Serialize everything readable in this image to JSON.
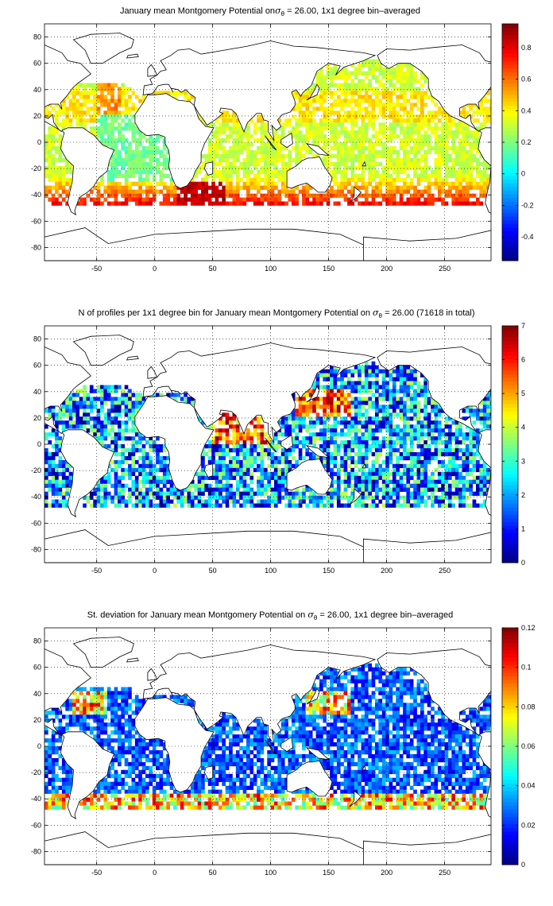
{
  "chart_data": [
    {
      "type": "heatmap",
      "title_prefix": "January mean Montgomery Potential on",
      "title_symbol": "σ",
      "title_sub": "θ",
      "title_suffix": "= 26.00, 1x1 degree bin–averaged",
      "xlim": [
        -95,
        290
      ],
      "ylim": [
        -90,
        90
      ],
      "xticks": [
        -50,
        0,
        50,
        100,
        150,
        200,
        250
      ],
      "yticks": [
        -80,
        -60,
        -40,
        -20,
        0,
        20,
        40,
        60,
        80
      ],
      "grid": true,
      "colorbar": {
        "min": -0.55,
        "max": 0.95,
        "ticks": [
          -0.4,
          -0.2,
          0,
          0.2,
          0.4,
          0.6,
          0.8
        ],
        "labels": [
          "-0.4",
          "-0.2",
          "0",
          "0.2",
          "0.4",
          "0.6",
          "0.8"
        ]
      },
      "field": "mean"
    },
    {
      "type": "heatmap",
      "title_prefix": "N of profiles per 1x1 degree bin for January mean Montgomery Potential on",
      "title_symbol": "σ",
      "title_sub": "θ",
      "title_suffix": "= 26.00 (71618 in total)",
      "xlim": [
        -95,
        290
      ],
      "ylim": [
        -90,
        90
      ],
      "xticks": [
        -50,
        0,
        50,
        100,
        150,
        200,
        250
      ],
      "yticks": [
        -80,
        -60,
        -40,
        -20,
        0,
        20,
        40,
        60,
        80
      ],
      "grid": true,
      "colorbar": {
        "min": 0,
        "max": 7,
        "ticks": [
          0,
          1,
          2,
          3,
          4,
          5,
          6,
          7
        ],
        "labels": [
          "0",
          "1",
          "2",
          "3",
          "4",
          "5",
          "6",
          "7"
        ]
      },
      "field": "count"
    },
    {
      "type": "heatmap",
      "title_prefix": "St. deviation for January mean Montgomery Potential on",
      "title_symbol": "σ",
      "title_sub": "θ",
      "title_suffix": "= 26.00, 1x1 degree bin–averaged",
      "xlim": [
        -95,
        290
      ],
      "ylim": [
        -90,
        90
      ],
      "xticks": [
        -50,
        0,
        50,
        100,
        150,
        200,
        250
      ],
      "yticks": [
        -80,
        -60,
        -40,
        -20,
        0,
        20,
        40,
        60,
        80
      ],
      "grid": true,
      "colorbar": {
        "min": 0,
        "max": 0.12,
        "ticks": [
          0,
          0.02,
          0.04,
          0.06,
          0.08,
          0.1,
          0.12
        ],
        "labels": [
          "0",
          "0.02",
          "0.04",
          "0.06",
          "0.08",
          "0.1",
          "0.12"
        ]
      },
      "field": "std"
    }
  ]
}
